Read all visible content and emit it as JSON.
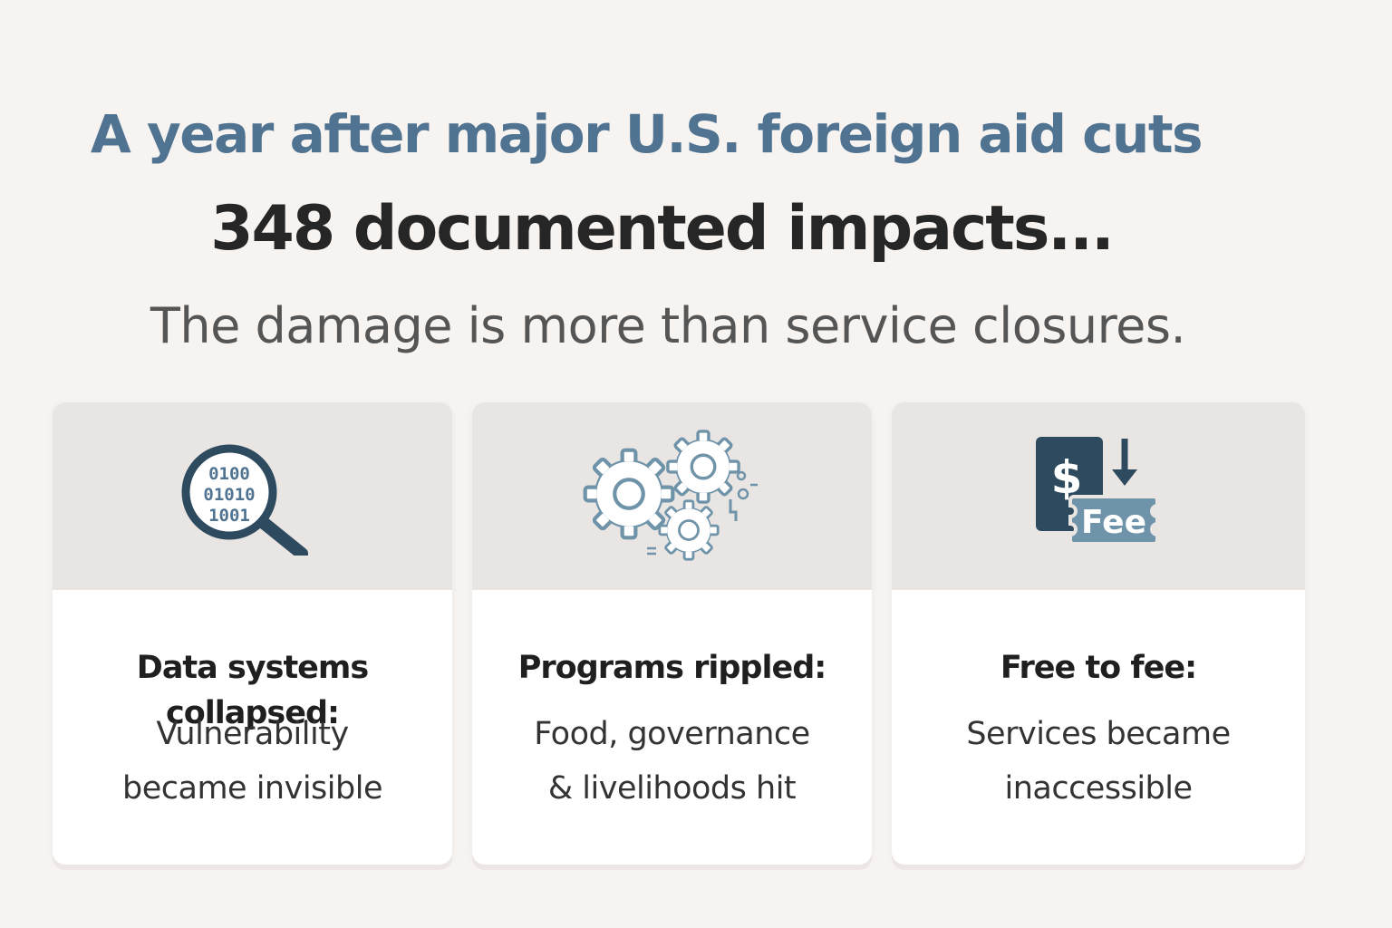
{
  "header": {
    "kicker": "A year after major U.S. foreign aid cuts",
    "headline": "348 documented impacts...",
    "subline": "The damage is more than service closures."
  },
  "cards": [
    {
      "icon": "binary-magnifier-icon",
      "binary_lines": [
        "0100",
        "01010",
        "1001"
      ],
      "title": "Data systems collapsed:",
      "desc_line1": "Vulnerability",
      "desc_line2": "became invisible"
    },
    {
      "icon": "gears-icon",
      "title": "Programs rippled:",
      "desc_line1": "Food, governance",
      "desc_line2": "& livelihoods hit"
    },
    {
      "icon": "dollar-to-fee-icon",
      "dollar_symbol": "$",
      "fee_label": "Fee",
      "title": "Free to fee:",
      "desc_line1": "Services became",
      "desc_line2": "inaccessible"
    }
  ],
  "colors": {
    "background": "#f7f3f1",
    "kicker": "#4f7390",
    "icon_dark": "#2e4a5f",
    "icon_light": "#6f93a9",
    "band": "#e9e5e3"
  }
}
